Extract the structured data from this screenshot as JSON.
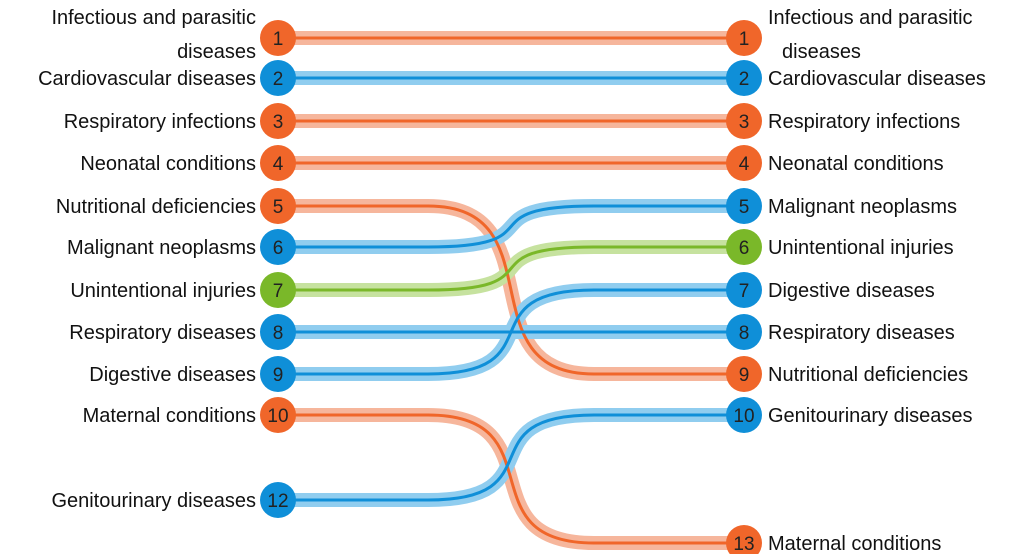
{
  "chart_data": {
    "type": "bump",
    "colors": {
      "communicable": "#f0662a",
      "noncommunicable": "#0f8fd8",
      "injuries": "#7ab829",
      "band_communicable": "#f6b69c",
      "band_noncommunicable": "#90cdef",
      "band_injuries": "#c6e29f"
    },
    "entries": [
      {
        "left_label": "Infectious and parasitic diseases",
        "left_rank": 1,
        "right_label": "Infectious and parasitic diseases",
        "right_rank": 1,
        "group": "communicable"
      },
      {
        "left_label": "Cardiovascular diseases",
        "left_rank": 2,
        "right_label": "Cardiovascular diseases",
        "right_rank": 2,
        "group": "noncommunicable"
      },
      {
        "left_label": "Respiratory infections",
        "left_rank": 3,
        "right_label": "Respiratory infections",
        "right_rank": 3,
        "group": "communicable"
      },
      {
        "left_label": "Neonatal conditions",
        "left_rank": 4,
        "right_label": "Neonatal conditions",
        "right_rank": 4,
        "group": "communicable"
      },
      {
        "left_label": "Nutritional deficiencies",
        "left_rank": 5,
        "right_label": "Nutritional deficiencies",
        "right_rank": 9,
        "group": "communicable"
      },
      {
        "left_label": "Malignant neoplasms",
        "left_rank": 6,
        "right_label": "Malignant neoplasms",
        "right_rank": 5,
        "group": "noncommunicable"
      },
      {
        "left_label": "Unintentional injuries",
        "left_rank": 7,
        "right_label": "Unintentional injuries",
        "right_rank": 6,
        "group": "injuries"
      },
      {
        "left_label": "Respiratory diseases",
        "left_rank": 8,
        "right_label": "Respiratory diseases",
        "right_rank": 8,
        "group": "noncommunicable"
      },
      {
        "left_label": "Digestive diseases",
        "left_rank": 9,
        "right_label": "Digestive diseases",
        "right_rank": 7,
        "group": "noncommunicable"
      },
      {
        "left_label": "Maternal conditions",
        "left_rank": 10,
        "right_label": "Maternal conditions",
        "right_rank": 13,
        "group": "communicable"
      },
      {
        "left_label": "Genitourinary diseases",
        "left_rank": 12,
        "right_label": "Genitourinary diseases",
        "right_rank": 10,
        "group": "noncommunicable"
      }
    ]
  }
}
